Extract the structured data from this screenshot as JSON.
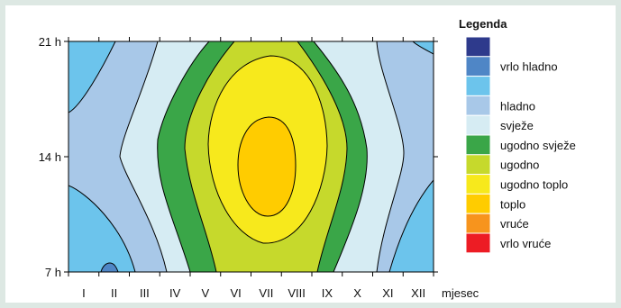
{
  "chart_data": {
    "type": "heatmap",
    "title": "",
    "xlabel": "mjesec",
    "ylabel": "",
    "x_categories": [
      "I",
      "II",
      "III",
      "IV",
      "V",
      "VI",
      "VII",
      "VIII",
      "IX",
      "X",
      "XI",
      "XII"
    ],
    "y_categories": [
      "7 h",
      "14 h",
      "21 h"
    ],
    "grid": false,
    "legend": {
      "title": "Legenda",
      "placement": "right",
      "entries": [
        {
          "label": "",
          "color": "#2e3a8c"
        },
        {
          "label": "vrlo hladno",
          "color": "#4f86c6"
        },
        {
          "label": "",
          "color": "#6cc4ec"
        },
        {
          "label": "hladno",
          "color": "#a8c8e8"
        },
        {
          "label": "svježe",
          "color": "#d6ecf3"
        },
        {
          "label": "ugodno svježe",
          "color": "#3aa648"
        },
        {
          "label": "ugodno",
          "color": "#c6d92c"
        },
        {
          "label": "ugodno toplo",
          "color": "#f7e91c"
        },
        {
          "label": "toplo",
          "color": "#ffcc00"
        },
        {
          "label": "vruće",
          "color": "#f7941d"
        },
        {
          "label": "vrlo vruće",
          "color": "#ed1c24"
        }
      ]
    },
    "contour_bands": [
      {
        "class": "",
        "color": "#6cc4ec"
      },
      {
        "class": "hladno",
        "color": "#a8c8e8"
      },
      {
        "class": "svježe",
        "color": "#d6ecf3"
      },
      {
        "class": "ugodno svježe",
        "color": "#3aa648"
      },
      {
        "class": "ugodno",
        "color": "#c6d92c"
      },
      {
        "class": "ugodno toplo",
        "color": "#f7e91c"
      },
      {
        "class": "toplo",
        "color": "#ffcc00"
      }
    ]
  }
}
